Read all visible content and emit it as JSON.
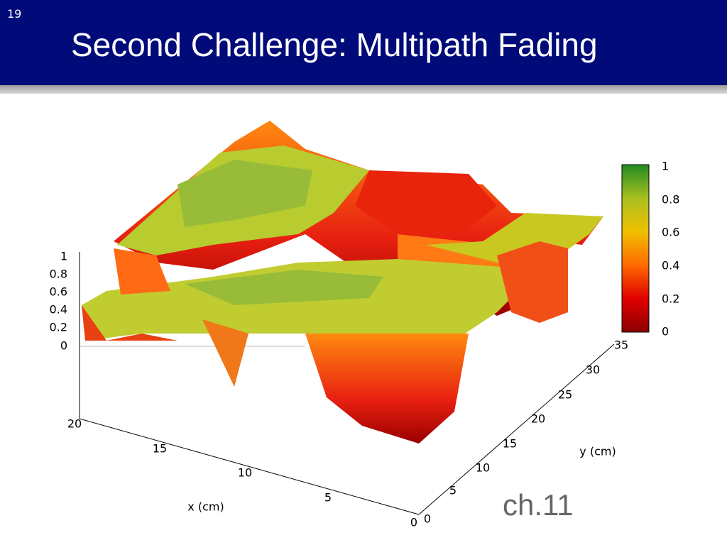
{
  "slide": {
    "number": "19",
    "title": "Second Challenge: Multipath Fading",
    "footer": "ch.11"
  },
  "figure": {
    "z_ticks": [
      0,
      0.2,
      0.4,
      0.6,
      0.8,
      1
    ],
    "x_ticks": [
      0,
      5,
      10,
      15,
      20
    ],
    "y_ticks": [
      0,
      5,
      10,
      15,
      20,
      25,
      30,
      35
    ],
    "colorbar_ticks": [
      0,
      0.2,
      0.4,
      0.6,
      0.8,
      1
    ],
    "x_label": "x (cm)",
    "y_label": "y (cm)"
  }
}
